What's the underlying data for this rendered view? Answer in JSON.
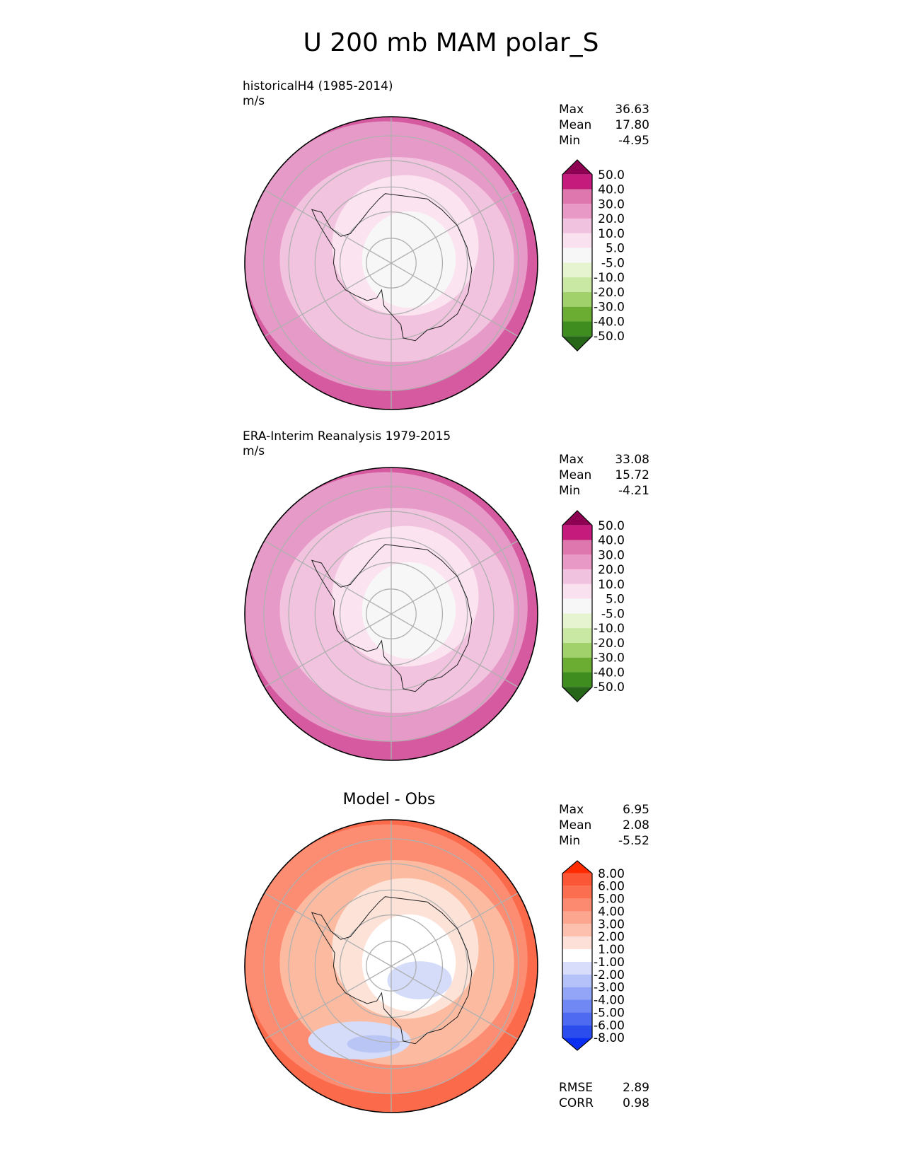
{
  "figure": {
    "title": "U 200 mb MAM polar_S"
  },
  "panels": [
    {
      "id": "test",
      "title": "historicalH4 (1985-2014)",
      "units": "m/s",
      "stats": [
        {
          "label": "Max",
          "value": "36.63"
        },
        {
          "label": "Mean",
          "value": "17.80"
        },
        {
          "label": "Min",
          "value": "-4.95"
        }
      ],
      "colorbar": {
        "labels": [
          "50.0",
          "40.0",
          "30.0",
          "20.0",
          "10.0",
          "5.0",
          "-5.0",
          "-10.0",
          "-20.0",
          "-30.0",
          "-40.0",
          "-50.0"
        ],
        "colors_top_to_bottom": [
          "#8e0152",
          "#c51b7d",
          "#de77ae",
          "#e899c6",
          "#f1c2e0",
          "#fae1ef",
          "#f7f7f7",
          "#e6f5d0",
          "#c9e8a3",
          "#a0d16a",
          "#6aad32",
          "#3f8c1f",
          "#266619"
        ]
      },
      "map_colors": {
        "outer": "#d55aa0",
        "ring": "#e69ac7",
        "mid": "#f2c3df",
        "inner": "#fbe3f0",
        "core": "#f7f7f7"
      }
    },
    {
      "id": "ref",
      "title": "ERA-Interim Reanalysis 1979-2015",
      "units": "m/s",
      "stats": [
        {
          "label": "Max",
          "value": "33.08"
        },
        {
          "label": "Mean",
          "value": "15.72"
        },
        {
          "label": "Min",
          "value": "-4.21"
        }
      ],
      "colorbar": {
        "labels": [
          "50.0",
          "40.0",
          "30.0",
          "20.0",
          "10.0",
          "5.0",
          "-5.0",
          "-10.0",
          "-20.0",
          "-30.0",
          "-40.0",
          "-50.0"
        ],
        "colors_top_to_bottom": [
          "#8e0152",
          "#c51b7d",
          "#de77ae",
          "#e899c6",
          "#f1c2e0",
          "#fae1ef",
          "#f7f7f7",
          "#e6f5d0",
          "#c9e8a3",
          "#a0d16a",
          "#6aad32",
          "#3f8c1f",
          "#266619"
        ]
      },
      "map_colors": {
        "outer": "#d55aa0",
        "ring": "#e69ac7",
        "mid": "#f2c3df",
        "inner": "#fbe3f0",
        "core": "#f7f7f7"
      }
    },
    {
      "id": "diff",
      "title": "Model - Obs",
      "stats": [
        {
          "label": "Max",
          "value": "6.95"
        },
        {
          "label": "Mean",
          "value": "2.08"
        },
        {
          "label": "Min",
          "value": "-5.52"
        }
      ],
      "extra_stats": [
        {
          "label": "RMSE",
          "value": "2.89"
        },
        {
          "label": "CORR",
          "value": "0.98"
        }
      ],
      "colorbar": {
        "labels": [
          "8.00",
          "6.00",
          "5.00",
          "4.00",
          "3.00",
          "2.00",
          "1.00",
          "-1.00",
          "-2.00",
          "-3.00",
          "-4.00",
          "-5.00",
          "-6.00",
          "-8.00"
        ],
        "colors_top_to_bottom": [
          "#ff2a00",
          "#fb5636",
          "#fb6f50",
          "#fb8a70",
          "#fca58f",
          "#fdbfae",
          "#fde0d7",
          "#ffffff",
          "#d7ddfb",
          "#b5c1f9",
          "#93a5f6",
          "#7088f3",
          "#4e6af0",
          "#2b4ded",
          "#0a2ff0"
        ]
      },
      "map_colors": {
        "outer": "#fb6a4a",
        "ring": "#fc8d73",
        "mid": "#fcbba1",
        "inner": "#fde2d7",
        "core": "#ffffff",
        "neg": "#d4dcfa",
        "neg2": "#b9c6f5"
      }
    }
  ]
}
